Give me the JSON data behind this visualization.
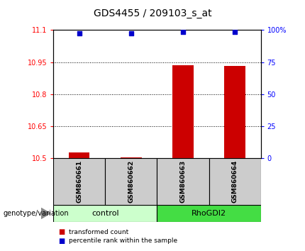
{
  "title": "GDS4455 / 209103_s_at",
  "samples": [
    "GSM860661",
    "GSM860662",
    "GSM860663",
    "GSM860664"
  ],
  "bar_values": [
    10.525,
    10.502,
    10.935,
    10.932
  ],
  "scatter_values": [
    11.085,
    11.085,
    11.09,
    11.09
  ],
  "ylim_left": [
    10.5,
    11.1
  ],
  "ylim_right": [
    0,
    100
  ],
  "yticks_left": [
    10.5,
    10.65,
    10.8,
    10.95,
    11.1
  ],
  "yticks_right": [
    0,
    25,
    50,
    75,
    100
  ],
  "ytick_labels_left": [
    "10.5",
    "10.65",
    "10.8",
    "10.95",
    "11.1"
  ],
  "ytick_labels_right": [
    "0",
    "25",
    "50",
    "75",
    "100%"
  ],
  "bar_color": "#cc0000",
  "scatter_color": "#0000cc",
  "group_colors_control": "#ccffcc",
  "group_colors_RhoGDI2": "#44dd44",
  "bar_width": 0.4,
  "sample_box_color": "#cccccc",
  "legend_items": [
    "transformed count",
    "percentile rank within the sample"
  ],
  "legend_colors": [
    "#cc0000",
    "#0000cc"
  ],
  "genotype_label": "genotype/variation"
}
